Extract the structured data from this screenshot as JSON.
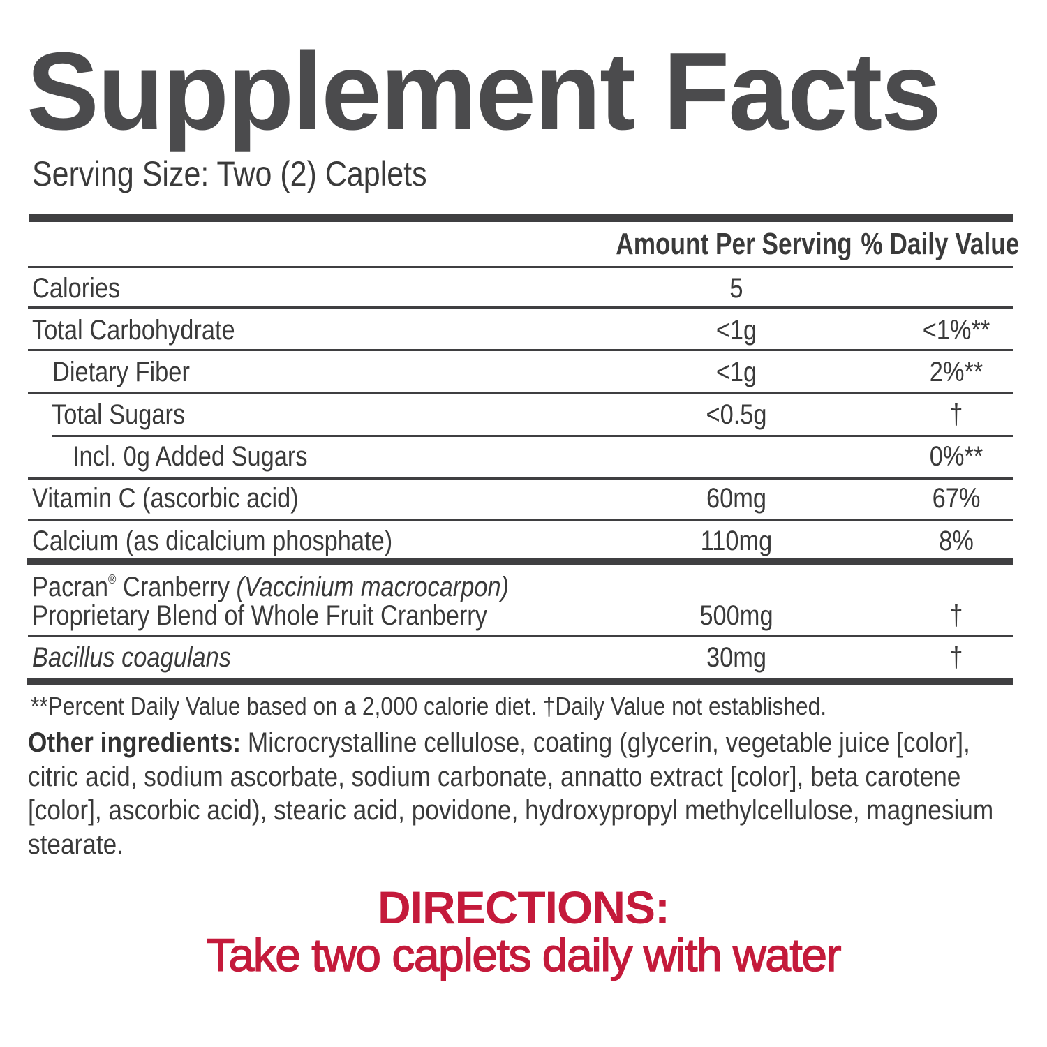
{
  "title": "Supplement Facts",
  "serving_size": "Serving Size: Two (2) Caplets",
  "header": {
    "amount": "Amount Per Serving",
    "daily_value": "% Daily Value"
  },
  "rows": [
    {
      "label": "Calories",
      "amount": "5",
      "dv": ""
    },
    {
      "label": "Total Carbohydrate",
      "amount": "<1g",
      "dv": "<1%**"
    },
    {
      "label": "Dietary Fiber",
      "amount": "<1g",
      "dv": "2%**"
    },
    {
      "label": "Total Sugars",
      "amount": "<0.5g",
      "dv": "†"
    },
    {
      "label": "Incl. 0g Added Sugars",
      "amount": "",
      "dv": "0%**"
    },
    {
      "label": "Vitamin C (ascorbic acid)",
      "amount": "60mg",
      "dv": "67%"
    },
    {
      "label": "Calcium (as dicalcium phosphate)",
      "amount": "110mg",
      "dv": "8%"
    }
  ],
  "blend": {
    "line1_brand": "Pacran",
    "line1_reg": "®",
    "line1_name": " Cranberry ",
    "line1_latin": "(Vaccinium macrocarpon)",
    "line2": "Proprietary Blend of Whole Fruit Cranberry",
    "amount": "500mg",
    "dv": "†"
  },
  "bacillus": {
    "label": "Bacillus coagulans",
    "amount": "30mg",
    "dv": "†"
  },
  "footnote": "**Percent Daily Value based on a 2,000 calorie diet.  †Daily Value not established.",
  "other_ingredients": {
    "label": "Other ingredients:",
    "text": " Microcrystalline cellulose, coating (glycerin, vegetable juice [color], citric acid, sodium ascorbate, sodium carbonate, annatto extract [color], beta carotene [color], ascorbic acid), stearic acid, povidone, hydroxypropyl methylcellulose, magnesium stearate."
  },
  "directions": {
    "heading": "DIRECTIONS:",
    "text": "Take two caplets daily with water"
  },
  "colors": {
    "text": "#3a3a3a",
    "title": "#4b4b4d",
    "rules": "#3f3f41",
    "directions": "#c41a3b"
  }
}
